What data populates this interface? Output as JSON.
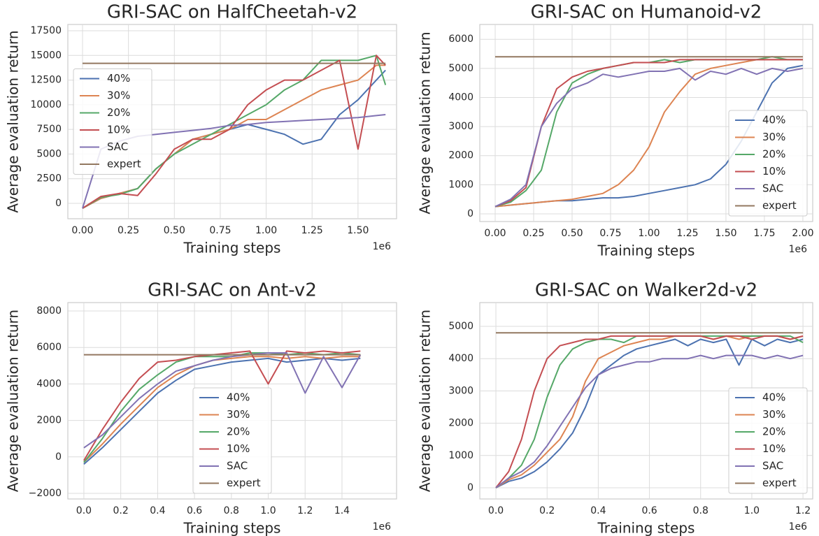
{
  "chart_data": [
    {
      "type": "line",
      "title": "GRI-SAC on HalfCheetah-v2",
      "x_label": "Training steps",
      "y_label": "Average evaluation return",
      "x_offset_label": "1e6",
      "xlim": [
        -0.08,
        1.71
      ],
      "ylim": [
        -1560,
        18140
      ],
      "xticks": [
        {
          "value": 0,
          "label": "0.00"
        },
        {
          "value": 0.25,
          "label": "0.25"
        },
        {
          "value": 0.5,
          "label": "0.50"
        },
        {
          "value": 0.75,
          "label": "0.75"
        },
        {
          "value": 1,
          "label": "1.00"
        },
        {
          "value": 1.25,
          "label": "1.25"
        },
        {
          "value": 1.5,
          "label": "1.50"
        }
      ],
      "yticks": [
        0,
        2500,
        5000,
        7500,
        10000,
        12500,
        15000,
        17500
      ],
      "grid": true,
      "legend": "center left",
      "x": [
        0,
        0.1,
        0.2,
        0.3,
        0.4,
        0.5,
        0.6,
        0.7,
        0.8,
        0.9,
        1.0,
        1.1,
        1.2,
        1.3,
        1.4,
        1.5,
        1.6,
        1.65
      ],
      "series": [
        {
          "name": "40%",
          "color": "#4c72b0",
          "values": [
            -500,
            500,
            1000,
            1500,
            3500,
            5000,
            6500,
            7000,
            7500,
            8000,
            7500,
            7000,
            6000,
            6500,
            9000,
            10500,
            12500,
            13500
          ]
        },
        {
          "name": "30%",
          "color": "#dd8452",
          "values": [
            -500,
            500,
            1000,
            1500,
            3500,
            5000,
            6500,
            7000,
            7500,
            8500,
            8500,
            9500,
            10500,
            11500,
            12000,
            12500,
            14000,
            14000
          ]
        },
        {
          "name": "20%",
          "color": "#55a868",
          "values": [
            -500,
            600,
            900,
            1500,
            3500,
            5000,
            6000,
            7000,
            8000,
            9000,
            10000,
            11500,
            12500,
            14500,
            14500,
            14500,
            15000,
            12000
          ]
        },
        {
          "name": "10%",
          "color": "#c44e52",
          "values": [
            -500,
            700,
            1000,
            800,
            3000,
            5500,
            6500,
            6500,
            7500,
            10000,
            11500,
            12500,
            12500,
            13500,
            14500,
            5500,
            15000,
            14000
          ]
        },
        {
          "name": "SAC",
          "color": "#8172b3",
          "values": [
            -500,
            5500,
            6300,
            6800,
            7000,
            7200,
            7400,
            7600,
            7900,
            8000,
            8200,
            8300,
            8400,
            8500,
            8600,
            8700,
            8900,
            9000
          ]
        },
        {
          "name": "expert",
          "color": "#937860",
          "values": [
            14200,
            14200,
            14200,
            14200,
            14200,
            14200,
            14200,
            14200,
            14200,
            14200,
            14200,
            14200,
            14200,
            14200,
            14200,
            14200,
            14200,
            14200
          ]
        }
      ]
    },
    {
      "type": "line",
      "title": "GRI-SAC on Humanoid-v2",
      "x_label": "Training steps",
      "y_label": "Average evaluation return",
      "x_offset_label": "1e6",
      "xlim": [
        -0.1,
        2.064
      ],
      "ylim": [
        -265,
        6510
      ],
      "xticks": [
        {
          "value": 0,
          "label": "0.00"
        },
        {
          "value": 0.25,
          "label": "0.25"
        },
        {
          "value": 0.5,
          "label": "0.50"
        },
        {
          "value": 0.75,
          "label": "0.75"
        },
        {
          "value": 1,
          "label": "1.00"
        },
        {
          "value": 1.25,
          "label": "1.25"
        },
        {
          "value": 1.5,
          "label": "1.50"
        },
        {
          "value": 1.75,
          "label": "1.75"
        },
        {
          "value": 2,
          "label": "2.00"
        }
      ],
      "yticks": [
        0,
        1000,
        2000,
        3000,
        4000,
        5000,
        6000
      ],
      "grid": true,
      "legend": "lower right",
      "x": [
        0,
        0.1,
        0.2,
        0.3,
        0.4,
        0.5,
        0.6,
        0.7,
        0.8,
        0.9,
        1.0,
        1.1,
        1.2,
        1.3,
        1.4,
        1.5,
        1.6,
        1.7,
        1.8,
        1.9,
        2.0
      ],
      "series": [
        {
          "name": "40%",
          "color": "#4c72b0",
          "values": [
            250,
            300,
            350,
            400,
            450,
            450,
            500,
            550,
            550,
            600,
            700,
            800,
            900,
            1000,
            1200,
            1700,
            2500,
            3500,
            4500,
            5000,
            5100
          ]
        },
        {
          "name": "30%",
          "color": "#dd8452",
          "values": [
            250,
            300,
            350,
            400,
            450,
            500,
            600,
            700,
            1000,
            1500,
            2300,
            3500,
            4200,
            4800,
            5000,
            5100,
            5200,
            5300,
            5300,
            5300,
            5300
          ]
        },
        {
          "name": "20%",
          "color": "#55a868",
          "values": [
            250,
            400,
            800,
            1500,
            3500,
            4500,
            4800,
            5000,
            5100,
            5200,
            5200,
            5300,
            5200,
            5300,
            5300,
            5300,
            5300,
            5300,
            5400,
            5300,
            5300
          ]
        },
        {
          "name": "10%",
          "color": "#c44e52",
          "values": [
            250,
            450,
            900,
            3000,
            4300,
            4700,
            4900,
            5000,
            5100,
            5200,
            5200,
            5200,
            5300,
            5300,
            5300,
            5300,
            5300,
            5300,
            5300,
            5300,
            5300
          ]
        },
        {
          "name": "SAC",
          "color": "#8172b3",
          "values": [
            250,
            500,
            1000,
            3000,
            3800,
            4300,
            4500,
            4800,
            4700,
            4800,
            4900,
            4900,
            5000,
            4600,
            4900,
            4800,
            5000,
            4800,
            5000,
            4900,
            5000
          ]
        },
        {
          "name": "expert",
          "color": "#937860",
          "values": [
            5400,
            5400,
            5400,
            5400,
            5400,
            5400,
            5400,
            5400,
            5400,
            5400,
            5400,
            5400,
            5400,
            5400,
            5400,
            5400,
            5400,
            5400,
            5400,
            5400,
            5400
          ]
        }
      ]
    },
    {
      "type": "line",
      "title": "GRI-SAC on Ant-v2",
      "x_label": "Training steps",
      "y_label": "Average evaluation return",
      "x_offset_label": "1e6",
      "xlim": [
        -0.087,
        1.696
      ],
      "ylim": [
        -2306,
        8460
      ],
      "xticks": [
        {
          "value": 0,
          "label": "0.0"
        },
        {
          "value": 0.2,
          "label": "0.2"
        },
        {
          "value": 0.4,
          "label": "0.4"
        },
        {
          "value": 0.6,
          "label": "0.6"
        },
        {
          "value": 0.8,
          "label": "0.8"
        },
        {
          "value": 1,
          "label": "1.0"
        },
        {
          "value": 1.2,
          "label": "1.2"
        },
        {
          "value": 1.4,
          "label": "1.4"
        }
      ],
      "yticks": [
        {
          "value": -2000,
          "label": "−2000"
        },
        0,
        2000,
        4000,
        6000,
        8000
      ],
      "grid": true,
      "legend": "lower center",
      "x": [
        0,
        0.1,
        0.2,
        0.3,
        0.4,
        0.5,
        0.6,
        0.7,
        0.8,
        0.9,
        1.0,
        1.1,
        1.2,
        1.3,
        1.4,
        1.5
      ],
      "series": [
        {
          "name": "40%",
          "color": "#4c72b0",
          "values": [
            -400,
            500,
            1500,
            2500,
            3500,
            4200,
            4800,
            5000,
            5200,
            5300,
            5400,
            5200,
            5300,
            5400,
            5300,
            5400
          ]
        },
        {
          "name": "30%",
          "color": "#dd8452",
          "values": [
            -300,
            700,
            1800,
            2800,
            3800,
            4500,
            5000,
            5300,
            5400,
            5500,
            5500,
            5400,
            5500,
            5400,
            5500,
            5500
          ]
        },
        {
          "name": "20%",
          "color": "#55a868",
          "values": [
            -300,
            1000,
            2500,
            3700,
            4500,
            5200,
            5500,
            5500,
            5500,
            5700,
            5700,
            5600,
            5700,
            5600,
            5700,
            5600
          ]
        },
        {
          "name": "10%",
          "color": "#c44e52",
          "values": [
            -200,
            1500,
            3000,
            4300,
            5200,
            5300,
            5500,
            5600,
            5700,
            5800,
            4000,
            5800,
            5700,
            5800,
            5700,
            5800
          ]
        },
        {
          "name": "SAC",
          "color": "#8172b3",
          "values": [
            500,
            1200,
            2200,
            3200,
            4000,
            4700,
            5000,
            5300,
            5500,
            5600,
            5700,
            5700,
            3500,
            5500,
            3800,
            5600
          ]
        },
        {
          "name": "expert",
          "color": "#937860",
          "values": [
            5600,
            5600,
            5600,
            5600,
            5600,
            5600,
            5600,
            5600,
            5600,
            5600,
            5600,
            5600,
            5600,
            5600,
            5600,
            5600
          ]
        }
      ]
    },
    {
      "type": "line",
      "title": "GRI-SAC on Walker2d-v2",
      "x_label": "Training steps",
      "y_label": "Average evaluation return",
      "x_offset_label": "1e6",
      "xlim": [
        -0.063,
        1.238
      ],
      "ylim": [
        -346,
        5736
      ],
      "xticks": [
        {
          "value": 0,
          "label": "0.0"
        },
        {
          "value": 0.2,
          "label": "0.2"
        },
        {
          "value": 0.4,
          "label": "0.4"
        },
        {
          "value": 0.6,
          "label": "0.6"
        },
        {
          "value": 0.8,
          "label": "0.8"
        },
        {
          "value": 1,
          "label": "1.0"
        },
        {
          "value": 1.2,
          "label": "1.2"
        }
      ],
      "yticks": [
        0,
        1000,
        2000,
        3000,
        4000,
        5000
      ],
      "grid": true,
      "legend": "lower right",
      "x": [
        0,
        0.05,
        0.1,
        0.15,
        0.2,
        0.25,
        0.3,
        0.35,
        0.4,
        0.45,
        0.5,
        0.55,
        0.6,
        0.65,
        0.7,
        0.75,
        0.8,
        0.85,
        0.9,
        0.95,
        1.0,
        1.05,
        1.1,
        1.15,
        1.2
      ],
      "series": [
        {
          "name": "40%",
          "color": "#4c72b0",
          "values": [
            0,
            200,
            300,
            500,
            800,
            1200,
            1700,
            2500,
            3500,
            3800,
            4100,
            4300,
            4400,
            4500,
            4600,
            4400,
            4600,
            4500,
            4600,
            3800,
            4600,
            4400,
            4600,
            4500,
            4600
          ]
        },
        {
          "name": "30%",
          "color": "#dd8452",
          "values": [
            0,
            250,
            400,
            700,
            1100,
            1500,
            2200,
            3300,
            4000,
            4200,
            4400,
            4500,
            4600,
            4600,
            4700,
            4700,
            4700,
            4600,
            4700,
            4600,
            4700,
            4700,
            4700,
            4600,
            4700
          ]
        },
        {
          "name": "20%",
          "color": "#55a868",
          "values": [
            0,
            300,
            700,
            1500,
            2800,
            3800,
            4300,
            4500,
            4600,
            4600,
            4500,
            4700,
            4700,
            4700,
            4700,
            4700,
            4700,
            4700,
            4700,
            4700,
            4700,
            4700,
            4700,
            4700,
            4500
          ]
        },
        {
          "name": "10%",
          "color": "#c44e52",
          "values": [
            0,
            500,
            1500,
            3000,
            4000,
            4400,
            4500,
            4600,
            4600,
            4700,
            4700,
            4700,
            4700,
            4700,
            4700,
            4700,
            4700,
            4600,
            4700,
            4700,
            4600,
            4700,
            4700,
            4600,
            4700
          ]
        },
        {
          "name": "SAC",
          "color": "#8172b3",
          "values": [
            0,
            300,
            500,
            800,
            1300,
            1900,
            2500,
            3100,
            3500,
            3700,
            3800,
            3900,
            3900,
            4000,
            4000,
            4000,
            4100,
            4000,
            4100,
            4100,
            4100,
            4000,
            4100,
            4000,
            4100
          ]
        },
        {
          "name": "expert",
          "color": "#937860",
          "values": [
            4800,
            4800,
            4800,
            4800,
            4800,
            4800,
            4800,
            4800,
            4800,
            4800,
            4800,
            4800,
            4800,
            4800,
            4800,
            4800,
            4800,
            4800,
            4800,
            4800,
            4800,
            4800,
            4800,
            4800,
            4800
          ]
        }
      ]
    }
  ]
}
